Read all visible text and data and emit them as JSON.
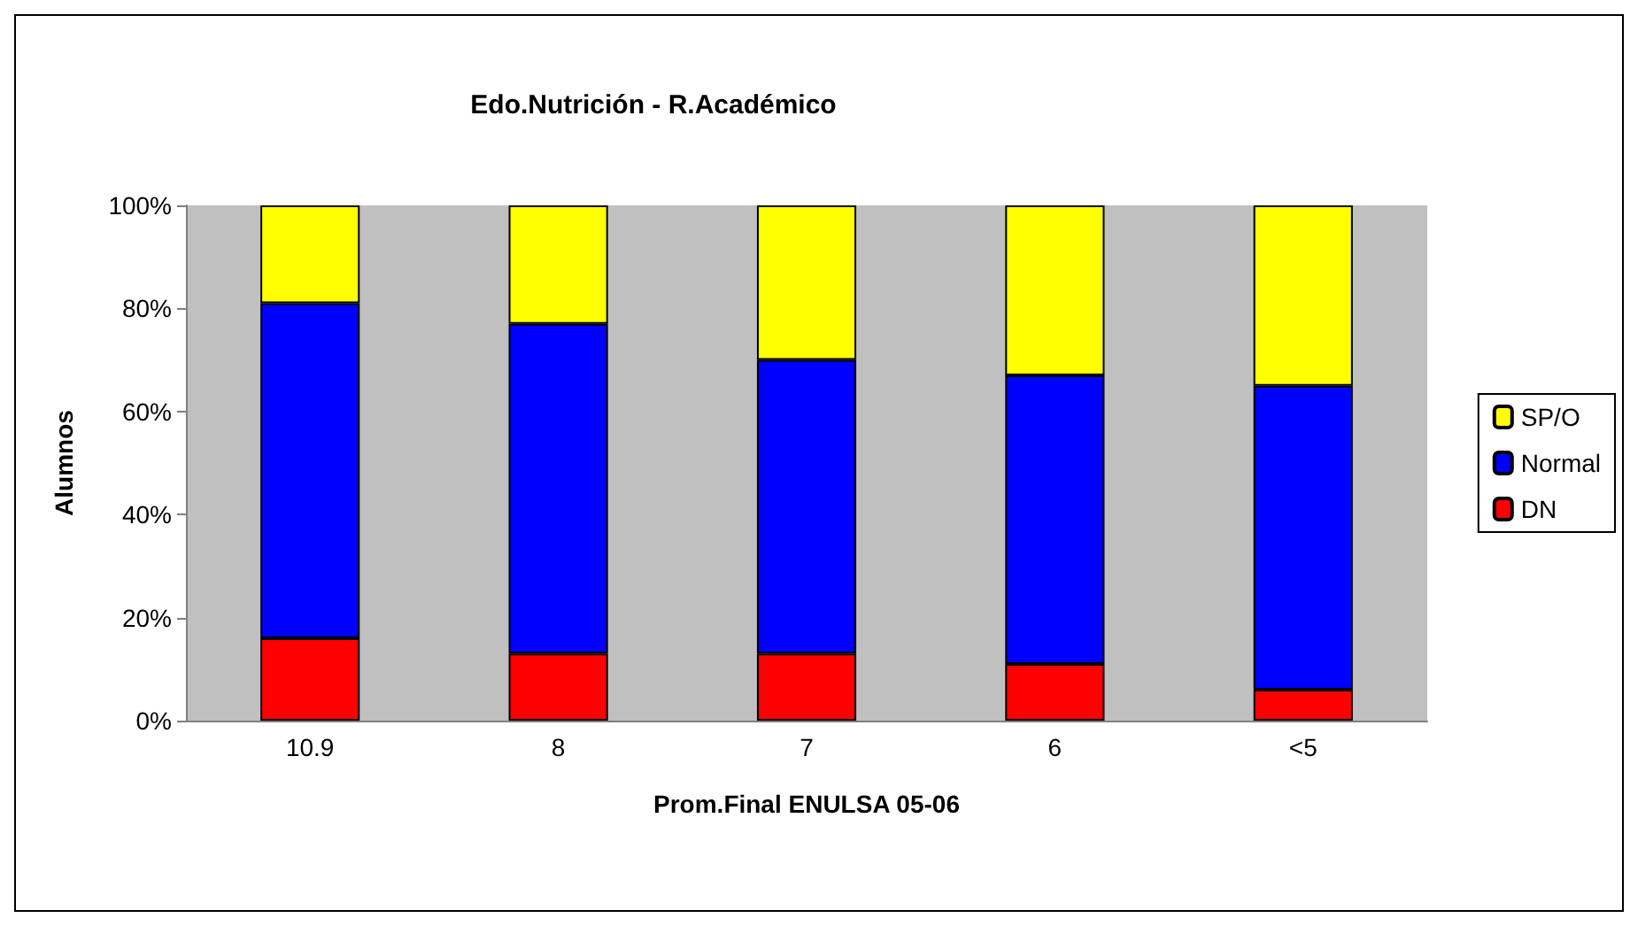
{
  "chart_data": {
    "type": "bar",
    "title": "Edo.Nutrición - R.Académico",
    "xlabel": "Prom.Final ENULSA 05-06",
    "ylabel": "Alumnos",
    "categories": [
      "10.9",
      "8",
      "7",
      "6",
      "<5"
    ],
    "stacked": true,
    "series": [
      {
        "name": "DN",
        "color": "#ff0000",
        "values": [
          16,
          13,
          13,
          11,
          6
        ]
      },
      {
        "name": "Normal",
        "color": "#0000ff",
        "values": [
          65,
          64,
          57,
          56,
          59
        ]
      },
      {
        "name": "SP/O",
        "color": "#ffff00",
        "values": [
          19,
          23,
          30,
          33,
          35
        ]
      }
    ],
    "ylim": [
      0,
      100
    ],
    "yticks": [
      {
        "value": 0,
        "label": "0%"
      },
      {
        "value": 20,
        "label": "20%"
      },
      {
        "value": 40,
        "label": "40%"
      },
      {
        "value": 60,
        "label": "60%"
      },
      {
        "value": 80,
        "label": "80%"
      },
      {
        "value": 100,
        "label": "100%"
      }
    ],
    "grid": false,
    "legend": "right"
  }
}
